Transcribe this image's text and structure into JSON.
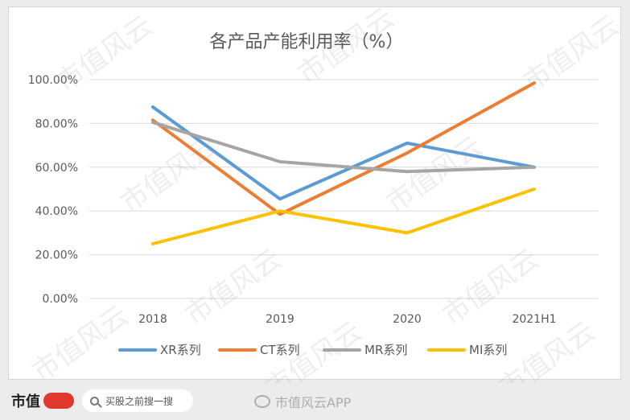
{
  "chart_data": {
    "type": "line",
    "title": "各产品产能利用率（%）",
    "categories": [
      "2018",
      "2019",
      "2020",
      "2021H1"
    ],
    "ylim": [
      0,
      100
    ],
    "yticks": [
      "0.00%",
      "20.00%",
      "40.00%",
      "60.00%",
      "80.00%",
      "100.00%"
    ],
    "ytick_values": [
      0,
      20,
      40,
      60,
      80,
      100
    ],
    "grid": true,
    "legend_position": "bottom",
    "series": [
      {
        "name": "XR系列",
        "color": "#5b9bd5",
        "values": [
          87.5,
          45.5,
          71,
          60
        ]
      },
      {
        "name": "CT系列",
        "color": "#ed7d31",
        "values": [
          81.5,
          38.5,
          66.5,
          98.5
        ]
      },
      {
        "name": "MR系列",
        "color": "#a5a5a5",
        "values": [
          80.5,
          62.5,
          58,
          60
        ]
      },
      {
        "name": "MI系列",
        "color": "#ffc000",
        "values": [
          25,
          40,
          30,
          50
        ]
      }
    ]
  },
  "watermark": "市值风云",
  "footer": {
    "brand": "市值",
    "search_placeholder": "买股之前搜一搜",
    "app_tag": "市值风云APP"
  }
}
